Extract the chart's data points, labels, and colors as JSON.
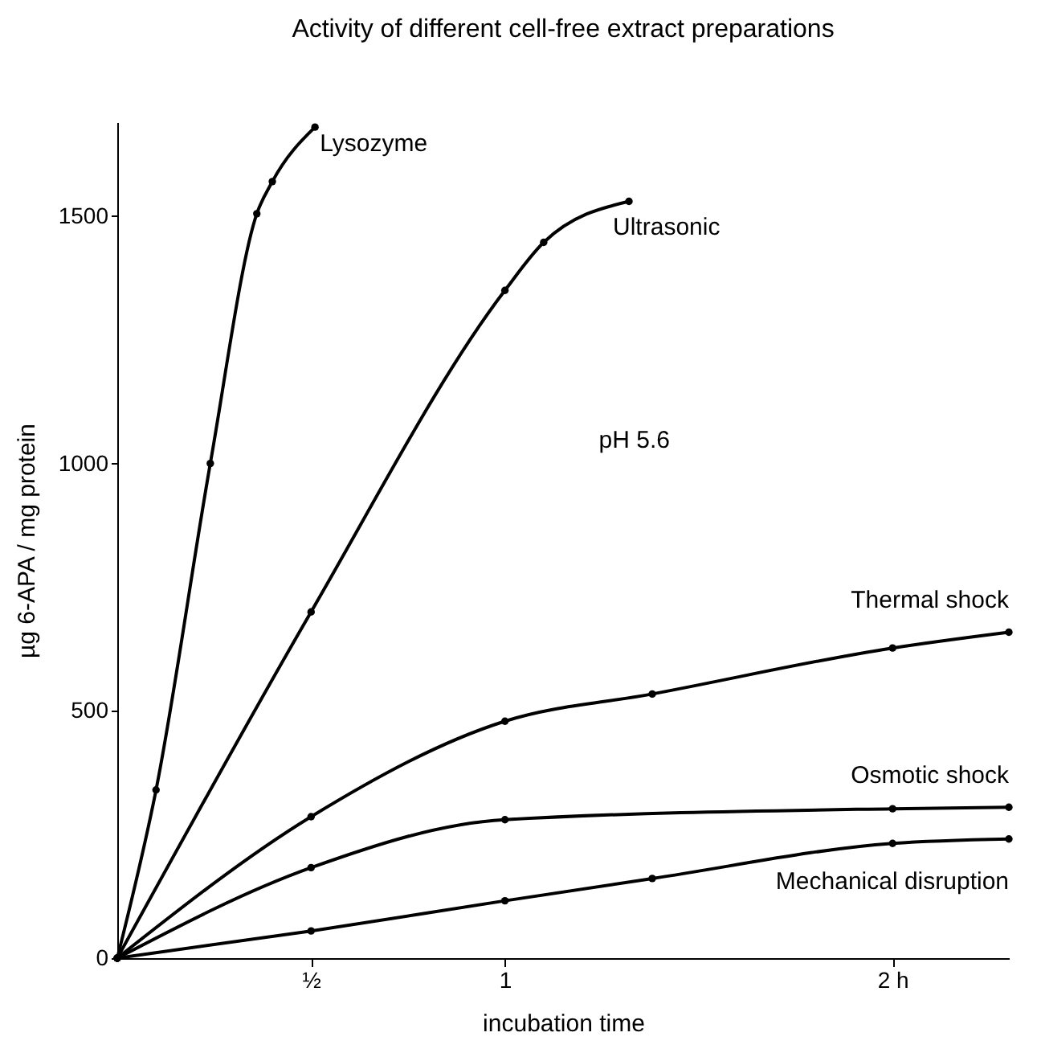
{
  "chart_data": {
    "type": "line",
    "title": "Activity of different cell-free extract preparations",
    "xlabel": "incubation time",
    "ylabel": "µg 6-APA / mg protein",
    "annotations": [
      "pH 5.6"
    ],
    "xlim": [
      0,
      2.3
    ],
    "ylim": [
      0,
      1690
    ],
    "xticks": [
      {
        "value": 0.5,
        "label": "½"
      },
      1,
      {
        "value": 2,
        "label": "2 h"
      }
    ],
    "yticks": [
      0,
      500,
      1000,
      1500
    ],
    "grid": false,
    "marker": "circle",
    "line_style": "solid",
    "series": [
      {
        "name": "Lysozyme",
        "color": "#000000",
        "x": [
          0,
          0.1,
          0.24,
          0.36,
          0.4,
          0.51
        ],
        "values": [
          0,
          340,
          1000,
          1505,
          1570,
          1680
        ]
      },
      {
        "name": "Ultrasonic",
        "color": "#000000",
        "x": [
          0,
          0.5,
          1,
          1.1,
          1.32
        ],
        "values": [
          0,
          700,
          1350,
          1447,
          1530
        ]
      },
      {
        "name": "Thermal shock",
        "color": "#000000",
        "x": [
          0,
          0.5,
          1,
          1.38,
          2,
          2.3
        ],
        "values": [
          0,
          286,
          479,
          534,
          627,
          659
        ]
      },
      {
        "name": "Osmotic shock",
        "color": "#000000",
        "x": [
          0,
          0.5,
          1,
          2,
          2.3
        ],
        "values": [
          0,
          183,
          280,
          302,
          305
        ]
      },
      {
        "name": "Mechanical disruption",
        "color": "#000000",
        "x": [
          0,
          0.5,
          1,
          1.38,
          2,
          2.3
        ],
        "values": [
          0,
          55,
          116,
          161,
          232,
          241
        ]
      }
    ]
  }
}
